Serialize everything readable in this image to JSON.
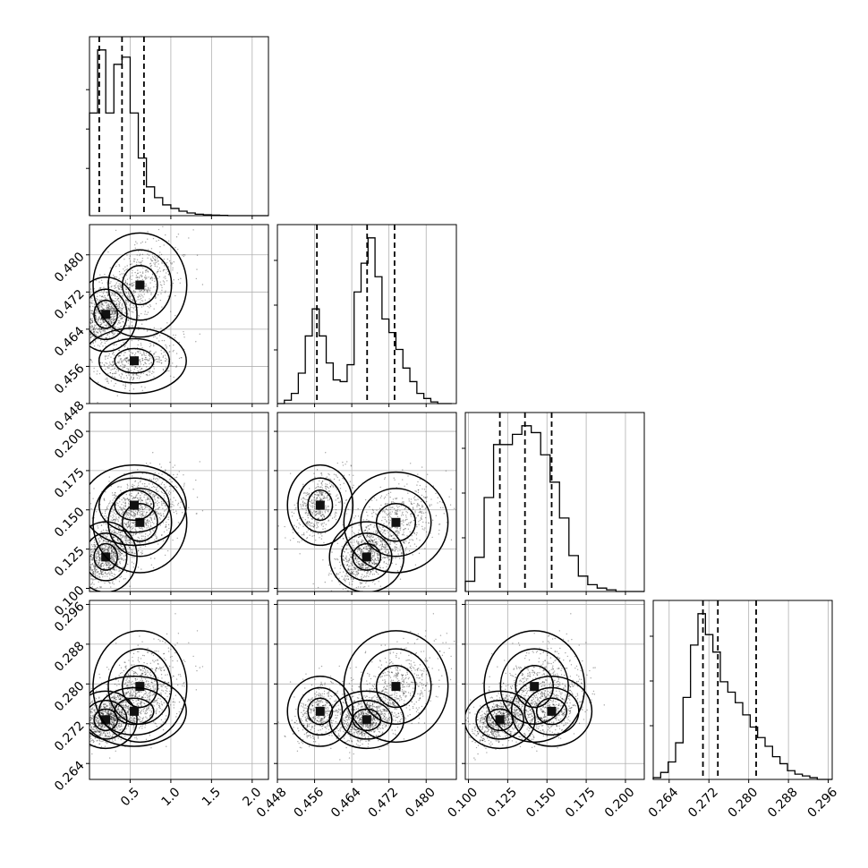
{
  "chart_data": {
    "type": "corner",
    "title": "",
    "parameters": [
      "",
      "",
      "",
      ""
    ],
    "grid": true,
    "ranges": [
      [
        0.0,
        2.2
      ],
      [
        0.448,
        0.4865
      ],
      [
        0.098,
        0.212
      ],
      [
        0.2608,
        0.2968
      ]
    ],
    "ticks": [
      {
        "values": [
          0.5,
          1.0,
          1.5,
          2.0
        ],
        "labels": [
          "0.5",
          "1.0",
          "1.5",
          "2.0"
        ]
      },
      {
        "values": [
          0.448,
          0.456,
          0.464,
          0.472,
          0.48
        ],
        "labels": [
          "0.448",
          "0.456",
          "0.464",
          "0.472",
          "0.480"
        ]
      },
      {
        "values": [
          0.1,
          0.125,
          0.15,
          0.175,
          0.2
        ],
        "labels": [
          "0.100",
          "0.125",
          "0.150",
          "0.175",
          "0.200"
        ]
      },
      {
        "values": [
          0.264,
          0.272,
          0.28,
          0.288,
          0.296
        ],
        "labels": [
          "0.264",
          "0.272",
          "0.280",
          "0.288",
          "0.296"
        ]
      }
    ],
    "quantiles": [
      [
        0.12,
        0.4,
        0.67
      ],
      [
        0.4565,
        0.4673,
        0.4732
      ],
      [
        0.12,
        0.136,
        0.153
      ],
      [
        0.2708,
        0.2738,
        0.2815
      ]
    ],
    "marginals": [
      {
        "bin_edges": [
          0.0,
          0.1,
          0.2,
          0.3,
          0.4,
          0.5,
          0.6,
          0.7,
          0.8,
          0.9,
          1.0,
          1.1,
          1.2,
          1.3,
          1.4,
          1.5,
          1.6,
          1.7,
          1.8,
          1.9,
          2.0,
          2.1,
          2.2
        ],
        "counts": [
          5.7,
          9.2,
          5.7,
          8.4,
          8.8,
          5.7,
          3.2,
          1.6,
          1.0,
          0.6,
          0.4,
          0.25,
          0.15,
          0.08,
          0.05,
          0.03,
          0.02,
          0.0,
          0.0,
          0.0,
          0.0,
          0.0
        ]
      },
      {
        "bin_edges": [
          0.448,
          0.4495,
          0.451,
          0.4525,
          0.454,
          0.4555,
          0.457,
          0.4585,
          0.46,
          0.4615,
          0.463,
          0.4645,
          0.466,
          0.4675,
          0.469,
          0.4705,
          0.472,
          0.4735,
          0.475,
          0.4765,
          0.478,
          0.4795,
          0.481,
          0.4825,
          0.484,
          0.4855
        ],
        "counts": [
          0.0,
          0.2,
          0.6,
          1.8,
          4.0,
          5.6,
          4.0,
          2.4,
          1.4,
          1.3,
          2.3,
          6.6,
          8.3,
          9.8,
          7.5,
          5.0,
          4.2,
          3.2,
          2.1,
          1.3,
          0.6,
          0.3,
          0.1,
          0.0,
          0.0
        ]
      },
      {
        "bin_edges": [
          0.098,
          0.104,
          0.11,
          0.116,
          0.122,
          0.128,
          0.134,
          0.14,
          0.146,
          0.152,
          0.158,
          0.164,
          0.17,
          0.176,
          0.182,
          0.188,
          0.194,
          0.2,
          0.206,
          0.212
        ],
        "counts": [
          0.6,
          2.0,
          5.5,
          8.6,
          8.6,
          9.2,
          9.7,
          9.3,
          8.0,
          6.4,
          4.3,
          2.1,
          0.9,
          0.4,
          0.2,
          0.1,
          0.0,
          0.0,
          0.0
        ]
      },
      {
        "bin_edges": [
          0.2608,
          0.2623,
          0.2638,
          0.2653,
          0.2668,
          0.2683,
          0.2698,
          0.2713,
          0.2728,
          0.2743,
          0.2758,
          0.2773,
          0.2788,
          0.2803,
          0.2818,
          0.2833,
          0.2848,
          0.2863,
          0.2878,
          0.2893,
          0.2908,
          0.2923,
          0.2938,
          0.2953,
          0.2968
        ],
        "counts": [
          0.1,
          0.4,
          1.0,
          2.1,
          4.7,
          7.7,
          9.5,
          8.3,
          7.3,
          5.6,
          5.0,
          4.4,
          3.7,
          3.0,
          2.4,
          1.9,
          1.3,
          0.9,
          0.5,
          0.3,
          0.2,
          0.1,
          0.0,
          0.0
        ]
      }
    ],
    "modes": [
      {
        "w": 0.45,
        "mean": [
          0.2,
          0.4672,
          0.12,
          0.2728
        ],
        "sd": [
          0.12,
          0.0025,
          0.007,
          0.0018
        ]
      },
      {
        "w": 0.3,
        "mean": [
          0.62,
          0.4735,
          0.142,
          0.2795
        ],
        "sd": [
          0.18,
          0.0035,
          0.01,
          0.0035
        ]
      },
      {
        "w": 0.25,
        "mean": [
          0.55,
          0.4572,
          0.153,
          0.2745
        ],
        "sd": [
          0.2,
          0.0022,
          0.008,
          0.0022
        ]
      }
    ]
  }
}
